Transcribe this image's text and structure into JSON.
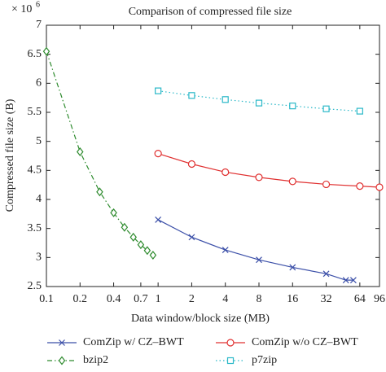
{
  "chart_data": {
    "type": "line",
    "title": "Comparison of compressed file size",
    "xlabel": "Data window/block size (MB)",
    "ylabel": "Compressed file size (B)",
    "axis_multiplier": {
      "base": "× 10",
      "exponent": "6"
    },
    "xscale": "log",
    "xlim": [
      0.1,
      96
    ],
    "xticks": [
      0.1,
      0.2,
      0.4,
      0.7,
      1,
      2,
      4,
      8,
      16,
      32,
      64,
      96
    ],
    "ylim": [
      2.5,
      7
    ],
    "yticks": [
      2.5,
      3,
      3.5,
      4,
      4.5,
      5,
      5.5,
      6,
      6.5,
      7
    ],
    "legend_position": "bottom",
    "series": [
      {
        "name": "ComZip w/ CZ–BWT",
        "color": "#3b4fa8",
        "marker": "x",
        "dash": "solid",
        "x": [
          1,
          2,
          4,
          8,
          16,
          32,
          48,
          56
        ],
        "values": [
          3.65,
          3.35,
          3.13,
          2.96,
          2.83,
          2.72,
          2.61,
          2.61
        ]
      },
      {
        "name": "ComZip w/o CZ–BWT",
        "color": "#e03030",
        "marker": "circle",
        "dash": "solid",
        "x": [
          1,
          2,
          4,
          8,
          16,
          32,
          64,
          96
        ],
        "values": [
          4.79,
          4.61,
          4.47,
          4.38,
          4.31,
          4.26,
          4.23,
          4.21
        ]
      },
      {
        "name": "bzip2",
        "color": "#2e8b2e",
        "marker": "diamond",
        "dash": "dashdot",
        "x": [
          0.1,
          0.2,
          0.3,
          0.4,
          0.5,
          0.6,
          0.7,
          0.8,
          0.9
        ],
        "values": [
          6.55,
          4.82,
          4.13,
          3.77,
          3.52,
          3.35,
          3.22,
          3.12,
          3.04
        ]
      },
      {
        "name": "p7zip",
        "color": "#2ab8c8",
        "marker": "square",
        "dash": "dotted",
        "x": [
          1,
          2,
          4,
          8,
          16,
          32,
          64
        ],
        "values": [
          5.87,
          5.79,
          5.72,
          5.66,
          5.61,
          5.56,
          5.52
        ]
      }
    ]
  }
}
